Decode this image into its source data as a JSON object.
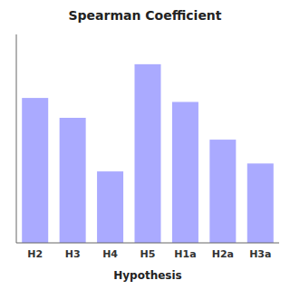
{
  "chart_data": {
    "type": "bar",
    "title": "Spearman Coefficient",
    "xlabel": "Hypothesis",
    "categories": [
      "H2",
      "H3",
      "H4",
      "H5",
      "H1a",
      "H2a",
      "H3a"
    ],
    "values": [
      0.73,
      0.63,
      0.36,
      0.9,
      0.71,
      0.52,
      0.4
    ],
    "color": "#aaaaff",
    "ylim": [
      0,
      1.05
    ],
    "grid": false,
    "tick_labels": "x"
  }
}
